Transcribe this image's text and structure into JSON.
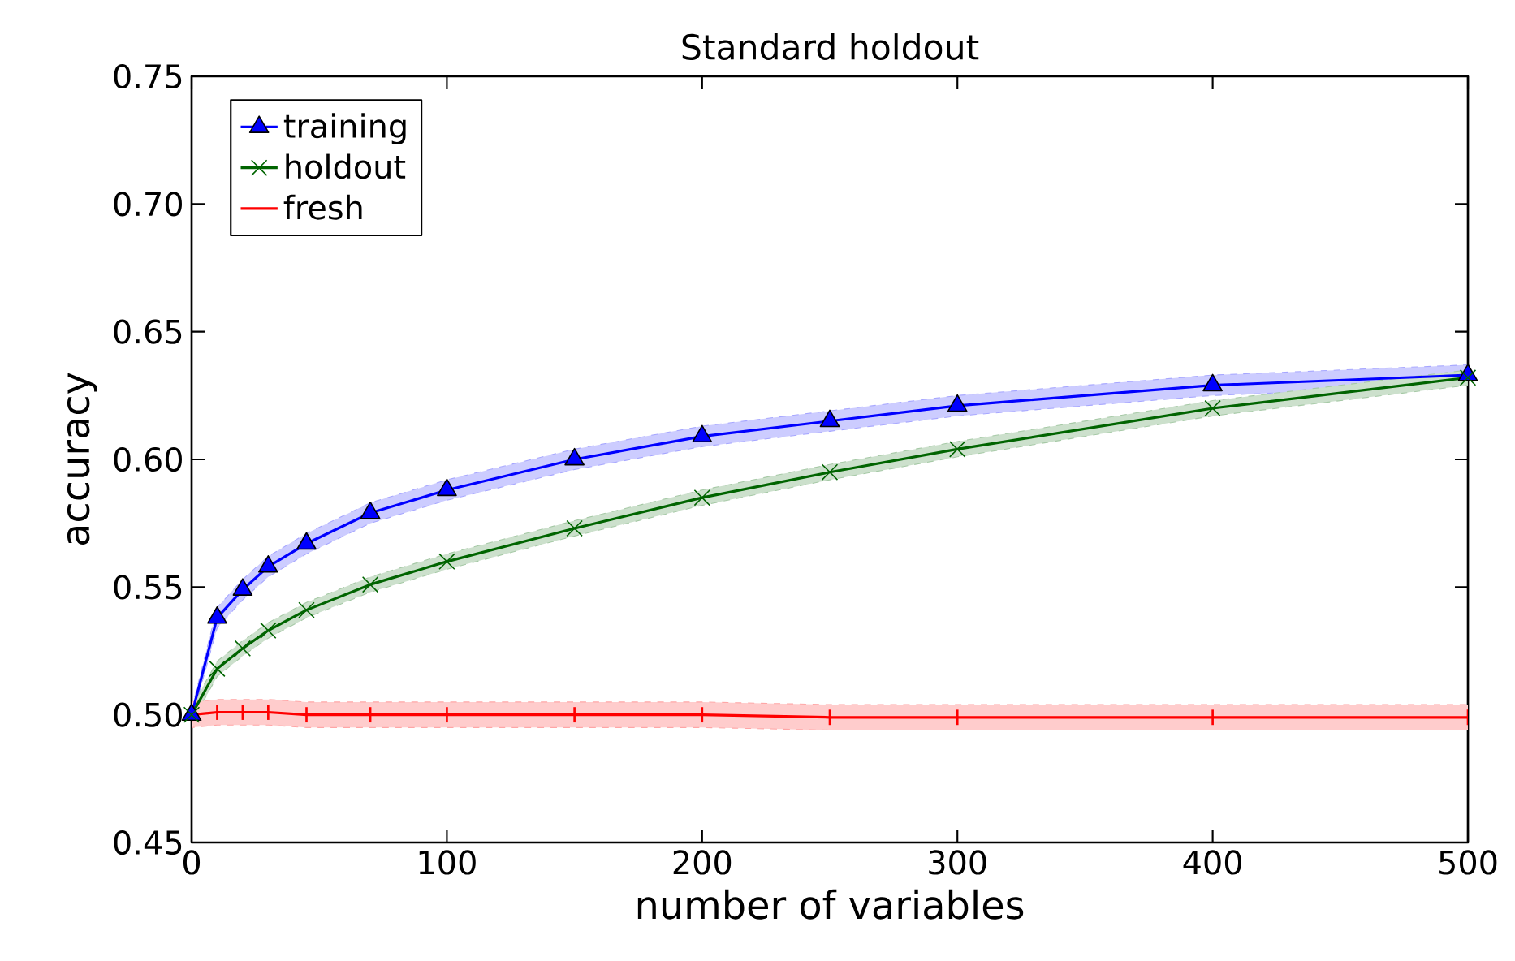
{
  "chart_data": {
    "type": "line",
    "title": "Standard holdout",
    "xlabel": "number of variables",
    "ylabel": "accuracy",
    "x": [
      0,
      10,
      20,
      30,
      45,
      70,
      100,
      150,
      200,
      250,
      300,
      400,
      500
    ],
    "xlim": [
      0,
      500
    ],
    "ylim": [
      0.45,
      0.75
    ],
    "xticks": [
      0,
      100,
      200,
      300,
      400,
      500
    ],
    "yticks": [
      {
        "value": 0.45,
        "label": "0.45"
      },
      {
        "value": 0.5,
        "label": "0.50"
      },
      {
        "value": 0.55,
        "label": "0.55"
      },
      {
        "value": 0.6,
        "label": "0.60"
      },
      {
        "value": 0.65,
        "label": "0.65"
      },
      {
        "value": 0.7,
        "label": "0.70"
      },
      {
        "value": 0.75,
        "label": "0.75"
      }
    ],
    "grid": false,
    "legend": "top left",
    "line_style": "solid",
    "series": [
      {
        "name": "training",
        "color": "#0000ff",
        "marker": "triangle",
        "values": [
          0.5,
          0.538,
          0.549,
          0.558,
          0.567,
          0.579,
          0.588,
          0.6,
          0.609,
          0.615,
          0.621,
          0.629,
          0.633
        ],
        "lower": [
          0.498,
          0.534,
          0.545,
          0.554,
          0.563,
          0.575,
          0.584,
          0.596,
          0.605,
          0.611,
          0.617,
          0.625,
          0.629
        ],
        "upper": [
          0.502,
          0.542,
          0.553,
          0.562,
          0.571,
          0.583,
          0.592,
          0.604,
          0.613,
          0.619,
          0.625,
          0.633,
          0.637
        ]
      },
      {
        "name": "holdout",
        "color": "#006400",
        "marker": "cross",
        "values": [
          0.5,
          0.518,
          0.526,
          0.533,
          0.541,
          0.551,
          0.56,
          0.573,
          0.585,
          0.595,
          0.604,
          0.62,
          0.632
        ],
        "lower": [
          0.497,
          0.515,
          0.523,
          0.53,
          0.538,
          0.548,
          0.557,
          0.57,
          0.582,
          0.592,
          0.601,
          0.617,
          0.629
        ],
        "upper": [
          0.503,
          0.521,
          0.529,
          0.536,
          0.544,
          0.554,
          0.563,
          0.576,
          0.588,
          0.598,
          0.607,
          0.623,
          0.635
        ]
      },
      {
        "name": "fresh",
        "color": "#ff0000",
        "marker": "none",
        "values": [
          0.5,
          0.501,
          0.501,
          0.501,
          0.5,
          0.5,
          0.5,
          0.5,
          0.5,
          0.499,
          0.499,
          0.499,
          0.499
        ],
        "errors": [
          0.003,
          0.003,
          0.003,
          0.003,
          0.003,
          0.003,
          0.003,
          0.003,
          0.003,
          0.003,
          0.003,
          0.003,
          0.003
        ],
        "lower": [
          0.495,
          0.496,
          0.496,
          0.496,
          0.495,
          0.495,
          0.495,
          0.495,
          0.495,
          0.494,
          0.494,
          0.494,
          0.494
        ],
        "upper": [
          0.505,
          0.506,
          0.506,
          0.506,
          0.505,
          0.505,
          0.505,
          0.505,
          0.505,
          0.504,
          0.504,
          0.504,
          0.504
        ]
      }
    ]
  }
}
